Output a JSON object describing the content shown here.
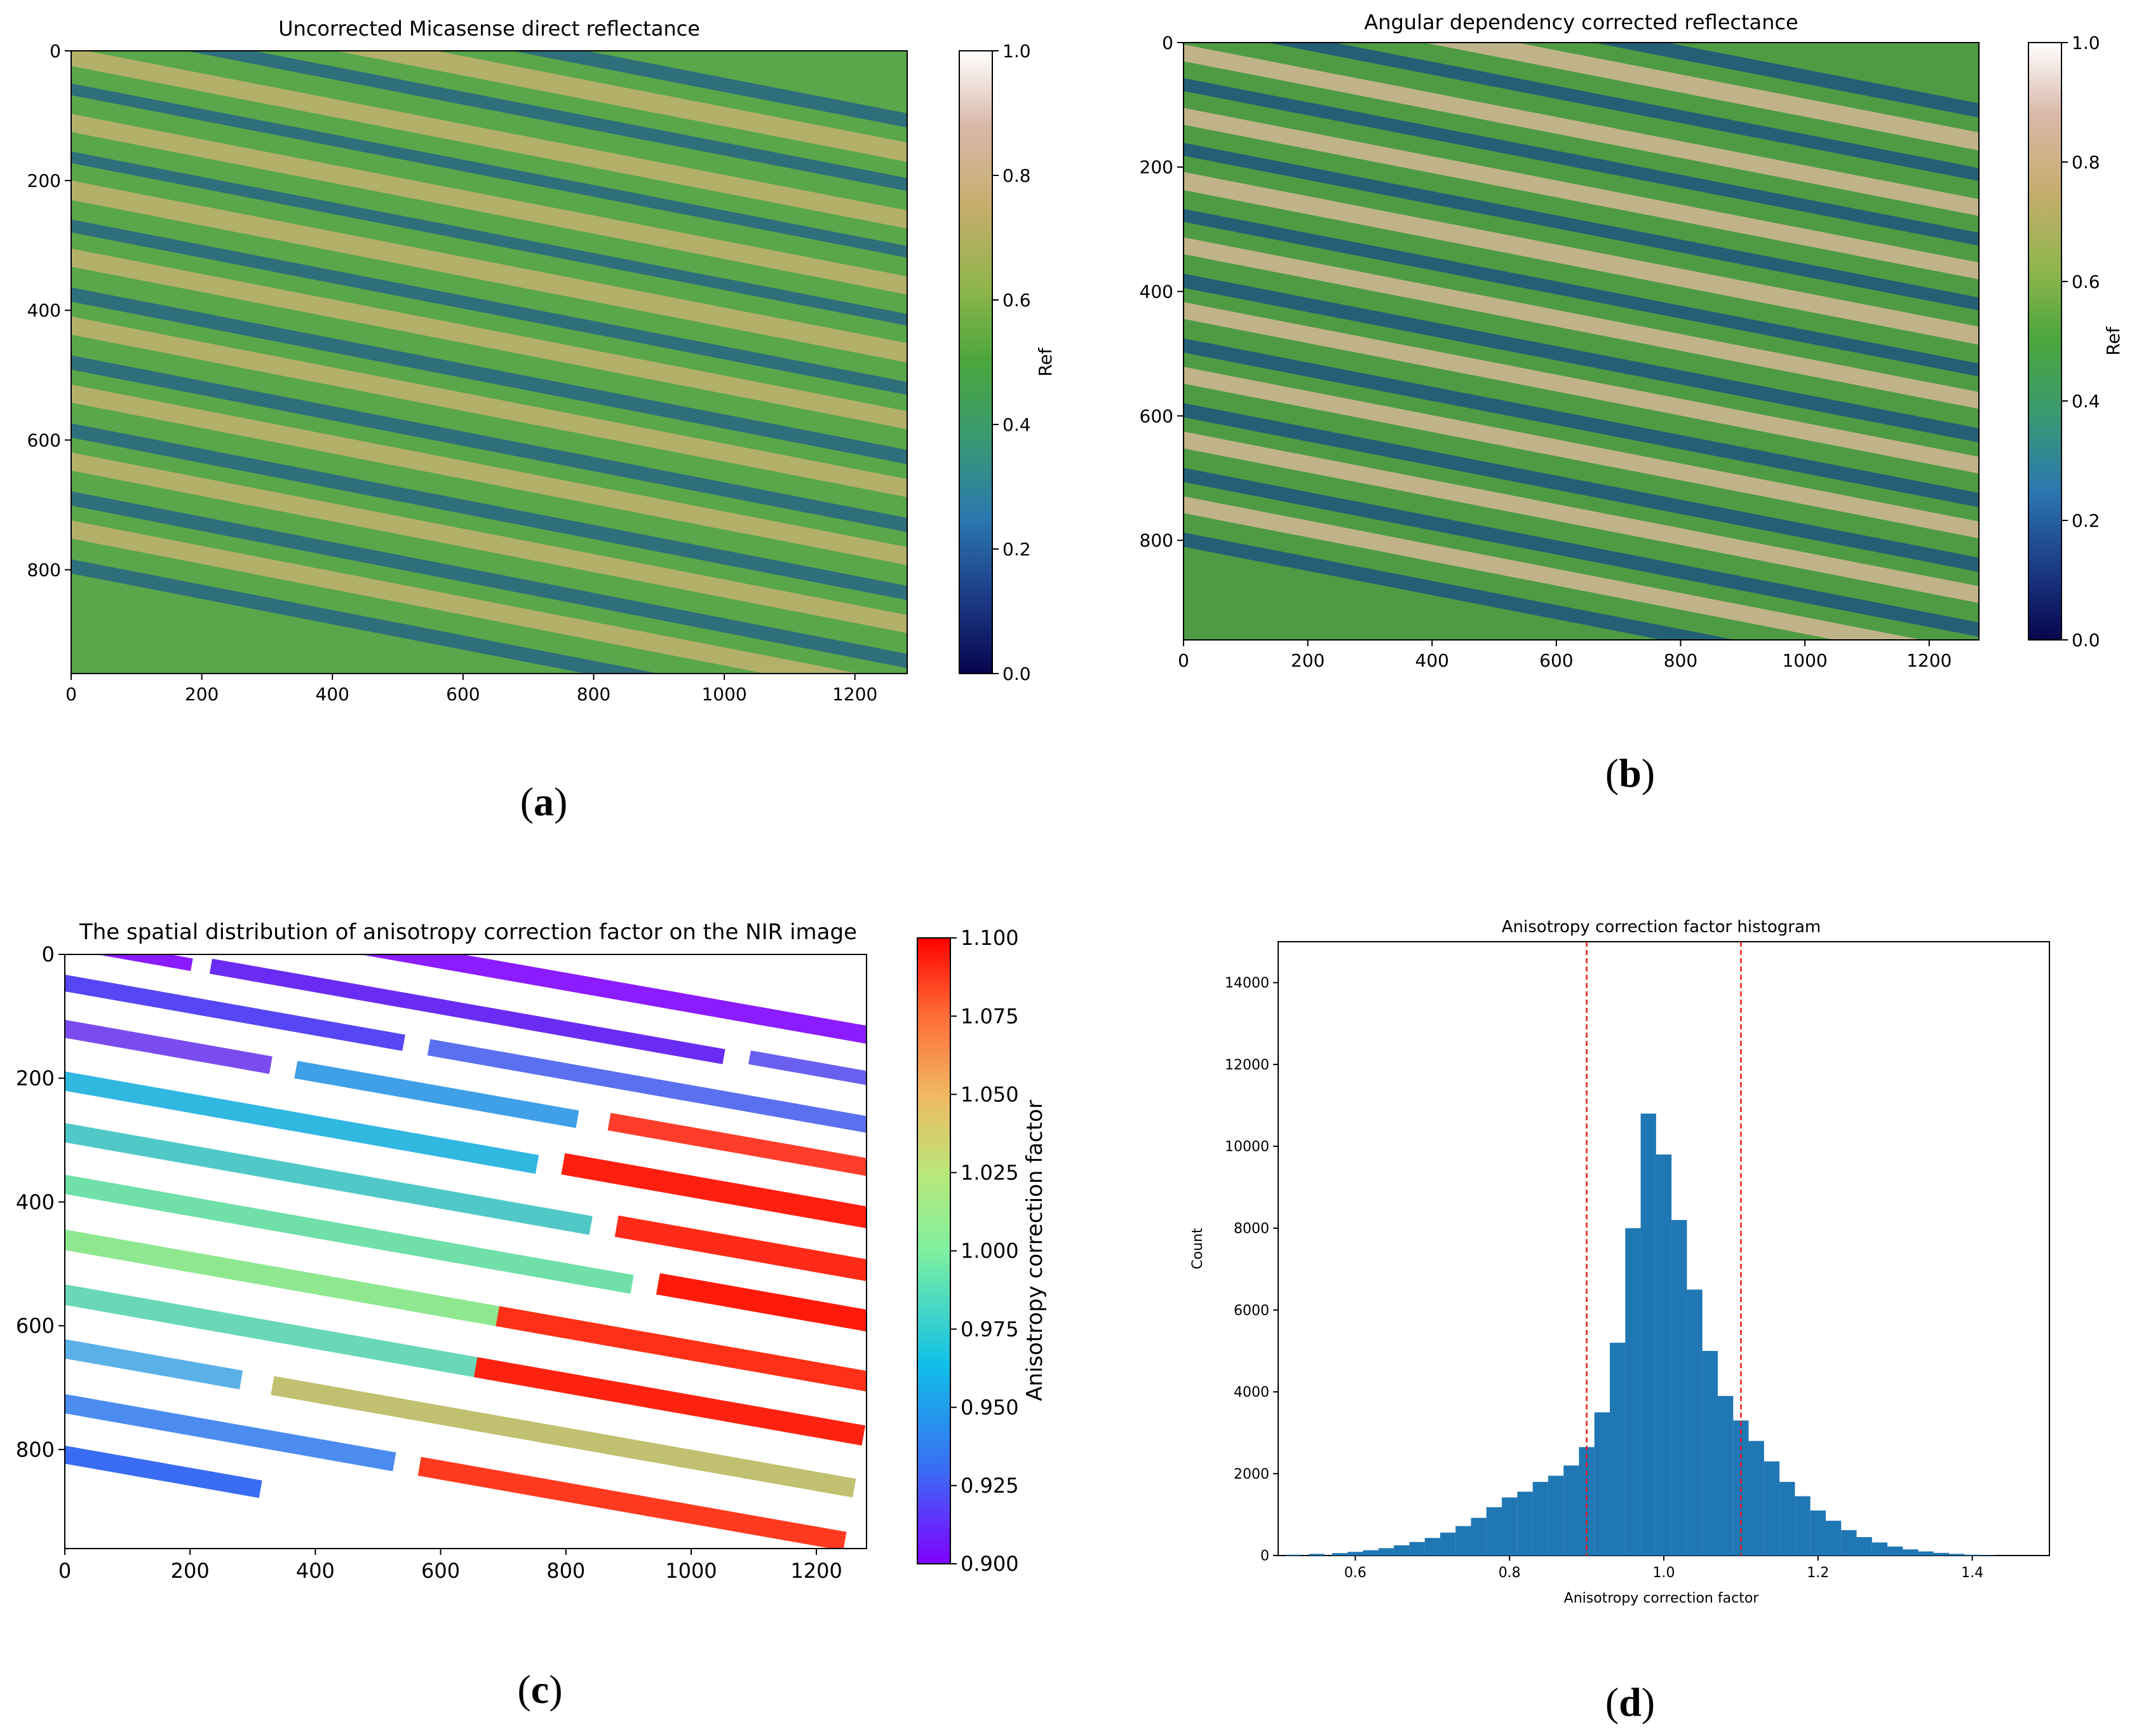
{
  "chart_data": [
    {
      "id": "a",
      "type": "heatmap",
      "title": "Uncorrected Micasense direct reflectance",
      "caption_letter": "a",
      "xlim": [
        0,
        1280
      ],
      "ylim": [
        960,
        0
      ],
      "xticks": [
        "0",
        "200",
        "400",
        "600",
        "800",
        "1000",
        "1200"
      ],
      "yticks": [
        "0",
        "200",
        "400",
        "600",
        "800"
      ],
      "colorbar": {
        "label": "Ref",
        "range": [
          0.0,
          1.0
        ],
        "ticks": [
          "0.0",
          "0.2",
          "0.4",
          "0.6",
          "0.8",
          "1.0"
        ]
      },
      "colormap": [
        "#06054d",
        "#1c3a86",
        "#2b78b0",
        "#3a9a70",
        "#4aa63d",
        "#8fb54c",
        "#c6ad6d",
        "#d9b8a9",
        "#ffffff"
      ],
      "base_color": "#5aa64a",
      "stripe_colors": {
        "dark": "#2d6f7a",
        "light": "#b3b06a"
      }
    },
    {
      "id": "b",
      "type": "heatmap",
      "title": "Angular dependency corrected reflectance",
      "caption_letter": "b",
      "xlim": [
        0,
        1280
      ],
      "ylim": [
        960,
        0
      ],
      "xticks": [
        "0",
        "200",
        "400",
        "600",
        "800",
        "1000",
        "1200"
      ],
      "yticks": [
        "0",
        "200",
        "400",
        "600",
        "800"
      ],
      "colorbar": {
        "label": "Ref",
        "range": [
          0.0,
          1.0
        ],
        "ticks": [
          "0.0",
          "0.2",
          "0.4",
          "0.6",
          "0.8",
          "1.0"
        ]
      },
      "colormap": [
        "#06054d",
        "#1c3a86",
        "#2b78b0",
        "#3a9a70",
        "#4aa63d",
        "#8fb54c",
        "#c6ad6d",
        "#d9b8a9",
        "#ffffff"
      ],
      "base_color": "#4f9b44",
      "stripe_colors": {
        "dark": "#235f75",
        "light": "#c0b38a"
      }
    },
    {
      "id": "c",
      "type": "heatmap",
      "title": "The spatial distribution of anisotropy correction factor on the NIR image",
      "caption_letter": "c",
      "xlim": [
        0,
        1280
      ],
      "ylim": [
        960,
        0
      ],
      "xticks": [
        "0",
        "200",
        "400",
        "600",
        "800",
        "1000",
        "1200"
      ],
      "yticks": [
        "0",
        "200",
        "400",
        "600",
        "800"
      ],
      "colorbar": {
        "label": "Anisotropy correction factor",
        "range": [
          0.9,
          1.1
        ],
        "ticks": [
          "0.900",
          "0.925",
          "0.950",
          "0.975",
          "1.000",
          "1.025",
          "1.050",
          "1.075",
          "1.100"
        ]
      },
      "colormap": [
        "#8000ff",
        "#3a6cf3",
        "#10c0e8",
        "#7ff0a0",
        "#b8e87a",
        "#f0b860",
        "#ff6a35",
        "#ff0000"
      ]
    },
    {
      "id": "d",
      "type": "bar",
      "title": "Anisotropy correction factor histogram",
      "caption_letter": "d",
      "xlabel": "Anisotropy correction factor",
      "ylabel": "Count",
      "xlim": [
        0.5,
        1.5
      ],
      "ylim": [
        0,
        15000
      ],
      "xticks": [
        "0.6",
        "0.8",
        "1.0",
        "1.2",
        "1.4"
      ],
      "yticks": [
        "0",
        "2000",
        "4000",
        "6000",
        "8000",
        "10000",
        "12000",
        "14000"
      ],
      "bar_color": "#1f77b4",
      "threshold_lines": [
        0.9,
        1.1
      ],
      "threshold_color": "#e41a1c",
      "bins": [
        [
          0.52,
          20
        ],
        [
          0.55,
          40
        ],
        [
          0.58,
          60
        ],
        [
          0.6,
          90
        ],
        [
          0.62,
          130
        ],
        [
          0.64,
          180
        ],
        [
          0.66,
          250
        ],
        [
          0.68,
          330
        ],
        [
          0.7,
          430
        ],
        [
          0.72,
          560
        ],
        [
          0.74,
          720
        ],
        [
          0.76,
          920
        ],
        [
          0.78,
          1180
        ],
        [
          0.8,
          1420
        ],
        [
          0.82,
          1560
        ],
        [
          0.84,
          1800
        ],
        [
          0.86,
          1950
        ],
        [
          0.88,
          2200
        ],
        [
          0.9,
          2650
        ],
        [
          0.92,
          3500
        ],
        [
          0.94,
          5200
        ],
        [
          0.96,
          8000
        ],
        [
          0.98,
          10800
        ],
        [
          1.0,
          9800
        ],
        [
          1.02,
          8200
        ],
        [
          1.04,
          6500
        ],
        [
          1.06,
          5000
        ],
        [
          1.08,
          3900
        ],
        [
          1.1,
          3300
        ],
        [
          1.12,
          2800
        ],
        [
          1.14,
          2300
        ],
        [
          1.16,
          1800
        ],
        [
          1.18,
          1450
        ],
        [
          1.2,
          1100
        ],
        [
          1.22,
          850
        ],
        [
          1.24,
          620
        ],
        [
          1.26,
          450
        ],
        [
          1.28,
          320
        ],
        [
          1.3,
          220
        ],
        [
          1.32,
          150
        ],
        [
          1.34,
          100
        ],
        [
          1.36,
          65
        ],
        [
          1.38,
          40
        ],
        [
          1.4,
          20
        ],
        [
          1.42,
          10
        ]
      ]
    }
  ]
}
